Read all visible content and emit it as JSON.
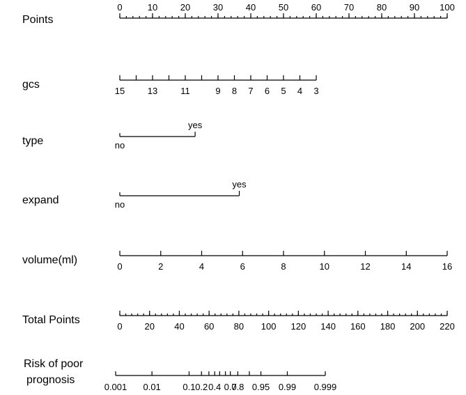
{
  "chart_data": {
    "type": "nomogram",
    "rows": [
      {
        "label": "Points",
        "ticks_above": true,
        "major": [
          {
            "value": 0,
            "label": "0"
          },
          {
            "value": 10,
            "label": "10"
          },
          {
            "value": 20,
            "label": "20"
          },
          {
            "value": 30,
            "label": "30"
          },
          {
            "value": 40,
            "label": "40"
          },
          {
            "value": 50,
            "label": "50"
          },
          {
            "value": 60,
            "label": "60"
          },
          {
            "value": 70,
            "label": "70"
          },
          {
            "value": 80,
            "label": "80"
          },
          {
            "value": 90,
            "label": "90"
          },
          {
            "value": 100,
            "label": "100"
          }
        ],
        "minor_step": 2,
        "range": [
          0,
          100
        ]
      },
      {
        "label": "gcs",
        "ticks_above": false,
        "reversed": true,
        "points_per_unit": 5,
        "major": [
          {
            "value": 15,
            "label": "15"
          },
          {
            "value": 14,
            "label": ""
          },
          {
            "value": 13,
            "label": "13"
          },
          {
            "value": 12,
            "label": ""
          },
          {
            "value": 11,
            "label": "11"
          },
          {
            "value": 10,
            "label": ""
          },
          {
            "value": 9,
            "label": "9"
          },
          {
            "value": 8,
            "label": "8"
          },
          {
            "value": 7,
            "label": "7"
          },
          {
            "value": 6,
            "label": "6"
          },
          {
            "value": 5,
            "label": "5"
          },
          {
            "value": 4,
            "label": "4"
          },
          {
            "value": 3,
            "label": "3"
          }
        ],
        "range": [
          15,
          3
        ]
      },
      {
        "label": "type",
        "categorical": true,
        "levels": [
          {
            "value": "no",
            "points": 0,
            "label": "no"
          },
          {
            "value": "yes",
            "points": 23,
            "label": "yes"
          }
        ]
      },
      {
        "label": "expand",
        "categorical": true,
        "levels": [
          {
            "value": "no",
            "points": 0,
            "label": "no"
          },
          {
            "value": "yes",
            "points": 36.5,
            "label": "yes"
          }
        ]
      },
      {
        "label": "volume(ml)",
        "ticks_above": false,
        "points_per_unit": 6.25,
        "major": [
          {
            "value": 0,
            "label": "0"
          },
          {
            "value": 2,
            "label": "2"
          },
          {
            "value": 4,
            "label": "4"
          },
          {
            "value": 6,
            "label": "6"
          },
          {
            "value": 8,
            "label": "8"
          },
          {
            "value": 10,
            "label": "10"
          },
          {
            "value": 12,
            "label": "12"
          },
          {
            "value": 14,
            "label": "14"
          },
          {
            "value": 16,
            "label": "16"
          }
        ],
        "range": [
          0,
          16
        ]
      },
      {
        "label": "Total Points",
        "ticks_above": false,
        "total_points": true,
        "major": [
          {
            "value": 0,
            "label": "0"
          },
          {
            "value": 20,
            "label": "20"
          },
          {
            "value": 40,
            "label": "40"
          },
          {
            "value": 60,
            "label": "60"
          },
          {
            "value": 80,
            "label": "80"
          },
          {
            "value": 100,
            "label": "100"
          },
          {
            "value": 120,
            "label": "120"
          },
          {
            "value": 140,
            "label": "140"
          },
          {
            "value": 160,
            "label": "160"
          },
          {
            "value": 180,
            "label": "180"
          },
          {
            "value": 200,
            "label": "200"
          },
          {
            "value": 220,
            "label": "220"
          }
        ],
        "minor_step": 4,
        "range": [
          0,
          220
        ]
      },
      {
        "label": "Risk of poor\nprognosis",
        "ticks_above": false,
        "risk": true,
        "major": [
          {
            "value": 0.001,
            "total": -1,
            "label": "0.001"
          },
          {
            "value": 0.01,
            "total": 21,
            "label": "0.01"
          },
          {
            "value": 0.1,
            "total": 43.5,
            "label": "0.1"
          },
          {
            "value": 0.2,
            "total": 51,
            "label": "0.2"
          },
          {
            "value": 0.3,
            "total": 55.5,
            "label": ""
          },
          {
            "value": 0.4,
            "total": 59,
            "label": "0.4"
          },
          {
            "value": 0.5,
            "total": 62,
            "label": ""
          },
          {
            "value": 0.6,
            "total": 65.5,
            "label": ""
          },
          {
            "value": 0.7,
            "total": 68.5,
            "label": "0.7"
          },
          {
            "value": 0.8,
            "total": 73,
            "label": "0.8"
          },
          {
            "value": 0.9,
            "total": 80,
            "label": ""
          },
          {
            "value": 0.95,
            "total": 87,
            "label": "0.95"
          },
          {
            "value": 0.99,
            "total": 103,
            "label": "0.99"
          },
          {
            "value": 0.999,
            "total": 126,
            "label": "0.999"
          }
        ]
      }
    ]
  }
}
